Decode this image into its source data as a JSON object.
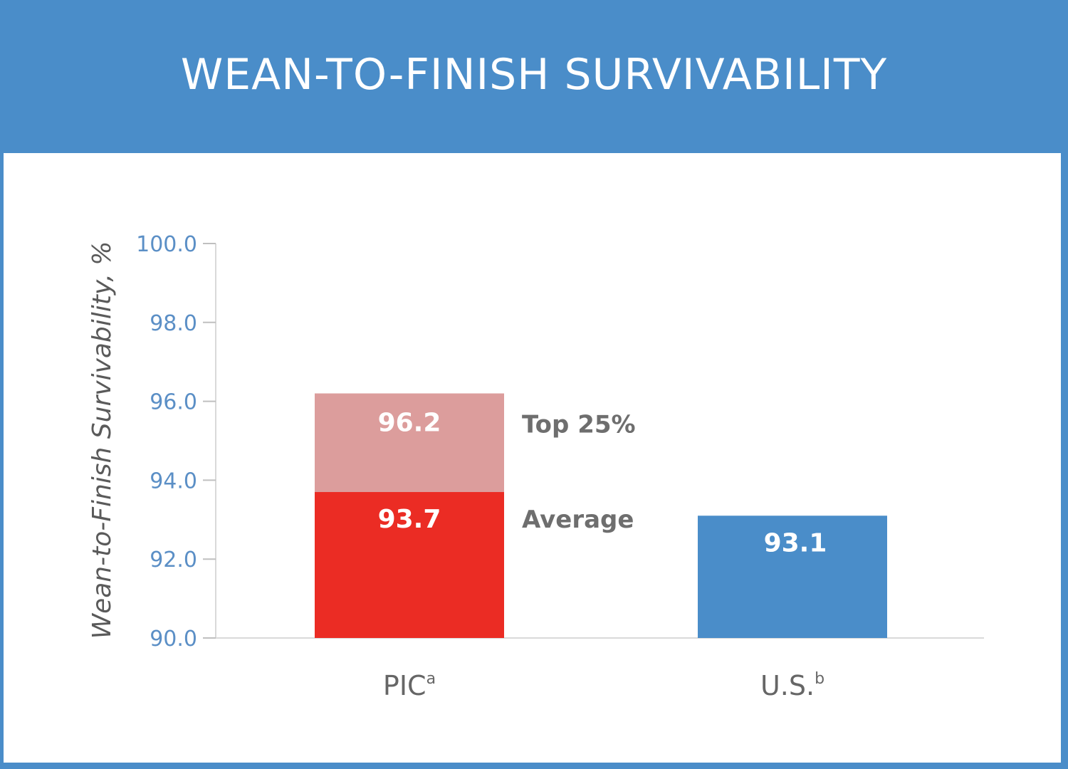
{
  "header": {
    "title": "WEAN-TO-FINISH SURVIVABILITY"
  },
  "colors": {
    "background": "#4a8dc9",
    "pic_average": "#eb2c24",
    "pic_top25": "#dc9d9c",
    "us": "#4a8dc9",
    "tick_label": "#5b8fc6",
    "axis_title": "#5a5a5a",
    "category_label": "#666666"
  },
  "chart_data": {
    "type": "bar",
    "title": "WEAN-TO-FINISH SURVIVABILITY",
    "ylabel": "Wean-to-Finish Survivability, %",
    "xlabel": "",
    "ylim": [
      90.0,
      100.0
    ],
    "yticks": [
      "90.0",
      "92.0",
      "94.0",
      "96.0",
      "98.0",
      "100.0"
    ],
    "grid": false,
    "categories": [
      {
        "label": "PIC",
        "sup": "a"
      },
      {
        "label": "U.S.",
        "sup": "b"
      }
    ],
    "pic": {
      "average": {
        "value": 93.7,
        "label": "93.7",
        "annotation": "Average"
      },
      "top25": {
        "value": 96.2,
        "label": "96.2",
        "annotation": "Top 25%"
      }
    },
    "us": {
      "value": 93.1,
      "label": "93.1"
    }
  }
}
